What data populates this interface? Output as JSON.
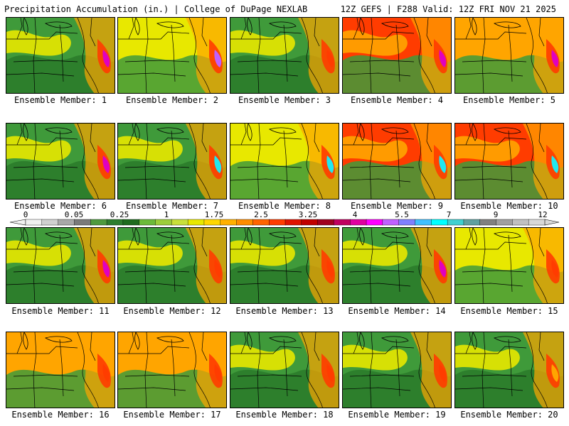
{
  "header": {
    "left": "Precipitation Accumulation (in.) | College of DuPage NEXLAB",
    "right": "12Z GEFS | F288 Valid: 12Z FRI NOV 21 2025"
  },
  "members": [
    {
      "label": "Ensemble Member: 1",
      "dominant": "green",
      "max": "magenta"
    },
    {
      "label": "Ensemble Member: 2",
      "dominant": "yellow",
      "max": "violet"
    },
    {
      "label": "Ensemble Member: 3",
      "dominant": "green",
      "max": "red"
    },
    {
      "label": "Ensemble Member: 4",
      "dominant": "red",
      "max": "magenta"
    },
    {
      "label": "Ensemble Member: 5",
      "dominant": "orange",
      "max": "magenta"
    },
    {
      "label": "Ensemble Member: 6",
      "dominant": "green",
      "max": "magenta"
    },
    {
      "label": "Ensemble Member: 7",
      "dominant": "green",
      "max": "cyan"
    },
    {
      "label": "Ensemble Member: 8",
      "dominant": "yellow",
      "max": "cyan"
    },
    {
      "label": "Ensemble Member: 9",
      "dominant": "red",
      "max": "cyan"
    },
    {
      "label": "Ensemble Member: 10",
      "dominant": "red",
      "max": "cyan"
    },
    {
      "label": "Ensemble Member: 11",
      "dominant": "green",
      "max": "magenta"
    },
    {
      "label": "Ensemble Member: 12",
      "dominant": "green",
      "max": "red"
    },
    {
      "label": "Ensemble Member: 13",
      "dominant": "green",
      "max": "red"
    },
    {
      "label": "Ensemble Member: 14",
      "dominant": "green",
      "max": "magenta"
    },
    {
      "label": "Ensemble Member: 15",
      "dominant": "yellow",
      "max": "red"
    },
    {
      "label": "Ensemble Member: 16",
      "dominant": "orange",
      "max": "red"
    },
    {
      "label": "Ensemble Member: 17",
      "dominant": "orange",
      "max": "red"
    },
    {
      "label": "Ensemble Member: 18",
      "dominant": "green",
      "max": "red"
    },
    {
      "label": "Ensemble Member: 19",
      "dominant": "green",
      "max": "red"
    },
    {
      "label": "Ensemble Member: 20",
      "dominant": "green",
      "max": "orange"
    }
  ],
  "colorbar": {
    "ticks": [
      "0",
      "0.05",
      "0.25",
      "1",
      "1.75",
      "2.5",
      "3.25",
      "4",
      "5.5",
      "7",
      "9",
      "12"
    ],
    "colors": [
      "#f0f0f0",
      "#d0d0d0",
      "#a8a8a8",
      "#7a7a7a",
      "#4e9a3e",
      "#2e7d2e",
      "#1f6b1f",
      "#6cba3a",
      "#9ccd3a",
      "#c8e03a",
      "#e8e800",
      "#ffd700",
      "#ffb000",
      "#ff8c00",
      "#ff6400",
      "#ff3c00",
      "#e01400",
      "#c00000",
      "#a00020",
      "#c00060",
      "#e000a0",
      "#ff00ff",
      "#c060ff",
      "#8080ff",
      "#40c0ff",
      "#00ffff",
      "#40d0d0",
      "#60a0a0",
      "#808080",
      "#a0a0a0",
      "#c0c0c0",
      "#d8d8d8"
    ]
  },
  "palette": {
    "green": "#3f9a3a",
    "darkgreen": "#2a7a2a",
    "yellow": "#e8e800",
    "orange": "#ffa500",
    "red": "#ff3c00",
    "magenta": "#e000c0",
    "violet": "#c060ff",
    "cyan": "#20e8f0",
    "grey": "#9a9a9a"
  }
}
